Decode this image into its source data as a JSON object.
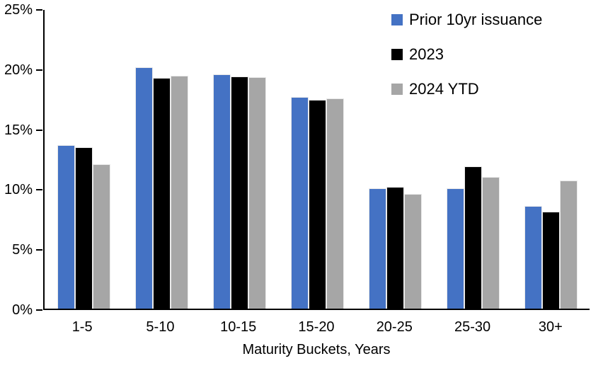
{
  "chart_data": {
    "type": "bar",
    "title": "",
    "categories": [
      "1-5",
      "5-10",
      "10-15",
      "15-20",
      "20-25",
      "25-30",
      "30+"
    ],
    "series": [
      {
        "name": "Prior 10yr issuance",
        "color": "#4472C4",
        "values": [
          13.7,
          20.2,
          19.6,
          17.7,
          10.1,
          10.1,
          8.6
        ]
      },
      {
        "name": "2023",
        "color": "#000000",
        "values": [
          13.5,
          19.3,
          19.45,
          17.5,
          10.2,
          11.9,
          8.1
        ]
      },
      {
        "name": "2024 YTD",
        "color": "#A6A6A6",
        "values": [
          12.1,
          19.5,
          19.4,
          17.6,
          9.6,
          11.0,
          10.7
        ]
      }
    ],
    "xlabel": "Maturity Buckets, Years",
    "ylabel": "",
    "ylim": [
      0,
      25
    ],
    "ytick_step": 5,
    "ytick_labels": [
      "0%",
      "5%",
      "10%",
      "15%",
      "20%",
      "25%"
    ],
    "legend_position": "top-right",
    "grid": false,
    "axis_color": "#000000",
    "background": "#FFFFFF"
  }
}
